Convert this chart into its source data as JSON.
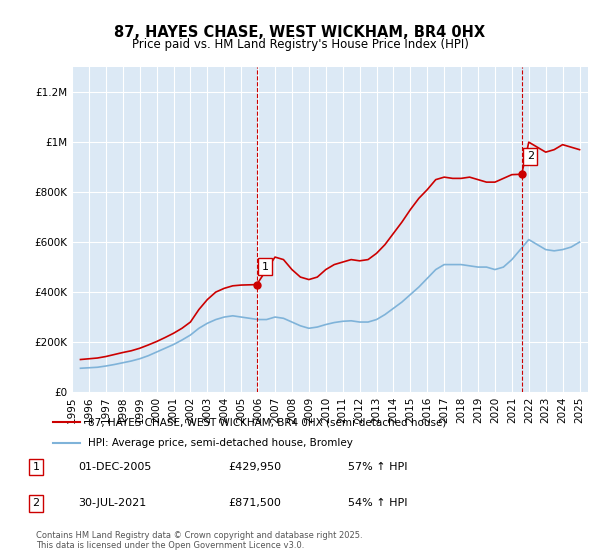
{
  "title": "87, HAYES CHASE, WEST WICKHAM, BR4 0HX",
  "subtitle": "Price paid vs. HM Land Registry's House Price Index (HPI)",
  "xlabel": "",
  "ylabel": "",
  "ylim": [
    0,
    1300000
  ],
  "yticks": [
    0,
    200000,
    400000,
    600000,
    800000,
    1000000,
    1200000
  ],
  "background_color": "#dce9f5",
  "plot_bg_color": "#dce9f5",
  "red_line_color": "#cc0000",
  "blue_line_color": "#7fb3d9",
  "marker1_x": 2005.92,
  "marker1_y": 429950,
  "marker1_label": "1",
  "marker2_x": 2021.58,
  "marker2_y": 871500,
  "marker2_label": "2",
  "vline1_x": 2005.92,
  "vline2_x": 2021.58,
  "legend_line1": "87, HAYES CHASE, WEST WICKHAM, BR4 0HX (semi-detached house)",
  "legend_line2": "HPI: Average price, semi-detached house, Bromley",
  "annotation1_box": "1",
  "annotation1_date": "01-DEC-2005",
  "annotation1_price": "£429,950",
  "annotation1_hpi": "57% ↑ HPI",
  "annotation2_box": "2",
  "annotation2_date": "30-JUL-2021",
  "annotation2_price": "£871,500",
  "annotation2_hpi": "54% ↑ HPI",
  "footer": "Contains HM Land Registry data © Crown copyright and database right 2025.\nThis data is licensed under the Open Government Licence v3.0.",
  "red_x": [
    1995.5,
    1996.0,
    1996.5,
    1997.0,
    1997.5,
    1998.0,
    1998.5,
    1999.0,
    1999.5,
    2000.0,
    2000.5,
    2001.0,
    2001.5,
    2002.0,
    2002.5,
    2003.0,
    2003.5,
    2004.0,
    2004.5,
    2005.0,
    2005.5,
    2005.92,
    2006.5,
    2007.0,
    2007.5,
    2008.0,
    2008.5,
    2009.0,
    2009.5,
    2010.0,
    2010.5,
    2011.0,
    2011.5,
    2012.0,
    2012.5,
    2013.0,
    2013.5,
    2014.0,
    2014.5,
    2015.0,
    2015.5,
    2016.0,
    2016.5,
    2017.0,
    2017.5,
    2018.0,
    2018.5,
    2019.0,
    2019.5,
    2020.0,
    2020.5,
    2021.0,
    2021.58,
    2022.0,
    2022.5,
    2023.0,
    2023.5,
    2024.0,
    2024.5,
    2025.0
  ],
  "red_y": [
    130000,
    133000,
    136000,
    142000,
    150000,
    158000,
    165000,
    175000,
    188000,
    202000,
    218000,
    235000,
    255000,
    280000,
    330000,
    370000,
    400000,
    415000,
    425000,
    428000,
    429000,
    429950,
    490000,
    540000,
    530000,
    490000,
    460000,
    450000,
    460000,
    490000,
    510000,
    520000,
    530000,
    525000,
    530000,
    555000,
    590000,
    635000,
    680000,
    730000,
    775000,
    810000,
    850000,
    860000,
    855000,
    855000,
    860000,
    850000,
    840000,
    840000,
    855000,
    870000,
    871500,
    1000000,
    980000,
    960000,
    970000,
    990000,
    980000,
    970000
  ],
  "blue_x": [
    1995.5,
    1996.0,
    1996.5,
    1997.0,
    1997.5,
    1998.0,
    1998.5,
    1999.0,
    1999.5,
    2000.0,
    2000.5,
    2001.0,
    2001.5,
    2002.0,
    2002.5,
    2003.0,
    2003.5,
    2004.0,
    2004.5,
    2005.0,
    2005.5,
    2006.0,
    2006.5,
    2007.0,
    2007.5,
    2008.0,
    2008.5,
    2009.0,
    2009.5,
    2010.0,
    2010.5,
    2011.0,
    2011.5,
    2012.0,
    2012.5,
    2013.0,
    2013.5,
    2014.0,
    2014.5,
    2015.0,
    2015.5,
    2016.0,
    2016.5,
    2017.0,
    2017.5,
    2018.0,
    2018.5,
    2019.0,
    2019.5,
    2020.0,
    2020.5,
    2021.0,
    2021.5,
    2022.0,
    2022.5,
    2023.0,
    2023.5,
    2024.0,
    2024.5,
    2025.0
  ],
  "blue_y": [
    95000,
    97000,
    99000,
    104000,
    110000,
    117000,
    124000,
    133000,
    145000,
    160000,
    175000,
    190000,
    208000,
    228000,
    255000,
    275000,
    290000,
    300000,
    305000,
    300000,
    295000,
    290000,
    290000,
    300000,
    295000,
    280000,
    265000,
    255000,
    260000,
    270000,
    278000,
    283000,
    285000,
    280000,
    280000,
    290000,
    310000,
    335000,
    360000,
    390000,
    420000,
    455000,
    490000,
    510000,
    510000,
    510000,
    505000,
    500000,
    500000,
    490000,
    500000,
    530000,
    570000,
    610000,
    590000,
    570000,
    565000,
    570000,
    580000,
    600000
  ],
  "xlim": [
    1995.0,
    2025.5
  ],
  "xtick_years": [
    1995,
    1996,
    1997,
    1998,
    1999,
    2000,
    2001,
    2002,
    2003,
    2004,
    2005,
    2006,
    2007,
    2008,
    2009,
    2010,
    2011,
    2012,
    2013,
    2014,
    2015,
    2016,
    2017,
    2018,
    2019,
    2020,
    2021,
    2022,
    2023,
    2024,
    2025
  ]
}
